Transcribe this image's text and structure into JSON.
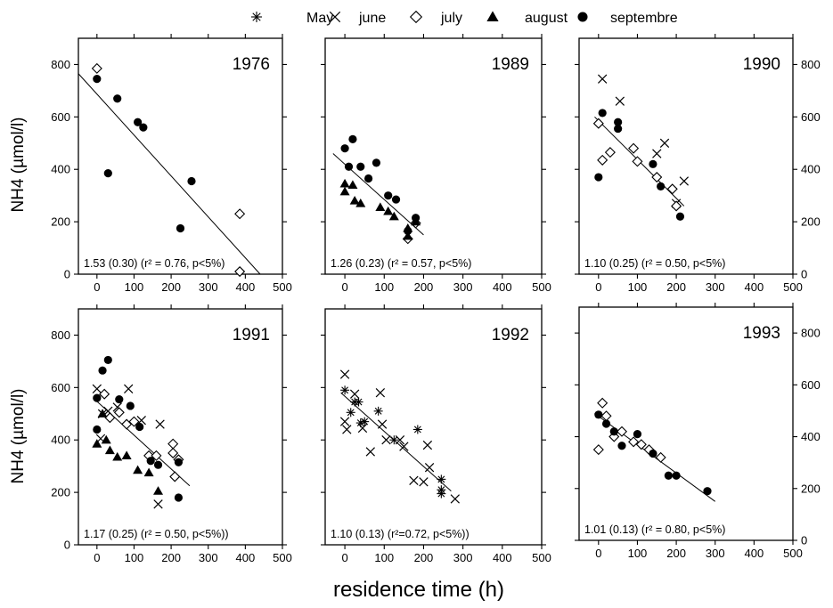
{
  "figure": {
    "ylabel": "NH4 (µmol/l)",
    "xlabel": "residence time  (h)"
  },
  "legend": [
    {
      "label": "May",
      "marker": "asterisk"
    },
    {
      "label": "june",
      "marker": "cross"
    },
    {
      "label": "july",
      "marker": "diamond-open"
    },
    {
      "label": "august",
      "marker": "triangle-filled"
    },
    {
      "label": "septembre",
      "marker": "circle-filled"
    }
  ],
  "x_ticks": [
    "0",
    "100",
    "200",
    "300",
    "400",
    "500"
  ],
  "y_ticks": [
    "0",
    "200",
    "400",
    "600",
    "800"
  ],
  "chart_data": [
    {
      "type": "scatter",
      "title": "1976",
      "stats": "1.53 (0.30)   (r² = 0.76,  p<5%)",
      "xlim": [
        -50,
        500
      ],
      "ylim": [
        0,
        900
      ],
      "fit": {
        "x": [
          -50,
          440
        ],
        "y": [
          765,
          0
        ]
      },
      "series": [
        {
          "name": "july",
          "marker": "diamond-open",
          "points": [
            [
              0,
              785
            ],
            [
              385,
              230
            ],
            [
              385,
              10
            ]
          ]
        },
        {
          "name": "septembre",
          "marker": "circle-filled",
          "points": [
            [
              0,
              745
            ],
            [
              30,
              385
            ],
            [
              55,
              670
            ],
            [
              110,
              580
            ],
            [
              125,
              560
            ],
            [
              255,
              355
            ],
            [
              225,
              175
            ]
          ]
        }
      ]
    },
    {
      "type": "scatter",
      "title": "1989",
      "stats": "1.26 (0.23)  (r² = 0.57, p<5%)",
      "xlim": [
        -50,
        500
      ],
      "ylim": [
        0,
        900
      ],
      "fit": {
        "x": [
          -30,
          200
        ],
        "y": [
          460,
          150
        ]
      },
      "series": [
        {
          "name": "july",
          "marker": "diamond-open",
          "points": [
            [
              180,
              195
            ],
            [
              160,
              135
            ]
          ]
        },
        {
          "name": "august",
          "marker": "triangle-filled",
          "points": [
            [
              0,
              345
            ],
            [
              0,
              315
            ],
            [
              20,
              340
            ],
            [
              25,
              280
            ],
            [
              40,
              270
            ],
            [
              90,
              255
            ],
            [
              110,
              240
            ],
            [
              125,
              220
            ],
            [
              160,
              175
            ],
            [
              160,
              145
            ],
            [
              180,
              200
            ]
          ]
        },
        {
          "name": "septembre",
          "marker": "circle-filled",
          "points": [
            [
              0,
              480
            ],
            [
              10,
              410
            ],
            [
              20,
              515
            ],
            [
              40,
              410
            ],
            [
              60,
              365
            ],
            [
              80,
              425
            ],
            [
              110,
              300
            ],
            [
              130,
              285
            ],
            [
              160,
              165
            ],
            [
              180,
              215
            ]
          ]
        }
      ]
    },
    {
      "type": "scatter",
      "title": "1990",
      "stats": "1.10 (0.25)   (r² = 0.50, p<5%)",
      "xlim": [
        -50,
        500
      ],
      "ylim": [
        0,
        900
      ],
      "fit": {
        "x": [
          -10,
          220
        ],
        "y": [
          600,
          260
        ]
      },
      "series": [
        {
          "name": "june",
          "marker": "cross",
          "points": [
            [
              10,
              745
            ],
            [
              55,
              660
            ],
            [
              150,
              460
            ],
            [
              170,
              500
            ],
            [
              200,
              270
            ],
            [
              220,
              355
            ]
          ]
        },
        {
          "name": "july",
          "marker": "diamond-open",
          "points": [
            [
              0,
              575
            ],
            [
              10,
              435
            ],
            [
              30,
              465
            ],
            [
              90,
              480
            ],
            [
              100,
              430
            ],
            [
              150,
              370
            ],
            [
              190,
              325
            ],
            [
              200,
              260
            ]
          ]
        },
        {
          "name": "septembre",
          "marker": "circle-filled",
          "points": [
            [
              0,
              370
            ],
            [
              10,
              615
            ],
            [
              50,
              580
            ],
            [
              50,
              555
            ],
            [
              140,
              420
            ],
            [
              160,
              335
            ],
            [
              210,
              220
            ]
          ]
        }
      ]
    },
    {
      "type": "scatter",
      "title": "1991",
      "stats": "1.17 (0.25)   (r² = 0.50,  p<5%))",
      "xlim": [
        -50,
        500
      ],
      "ylim": [
        0,
        900
      ],
      "fit": {
        "x": [
          -10,
          250
        ],
        "y": [
          560,
          225
        ]
      },
      "series": [
        {
          "name": "june",
          "marker": "cross",
          "points": [
            [
              0,
              595
            ],
            [
              15,
              500
            ],
            [
              30,
              510
            ],
            [
              55,
              525
            ],
            [
              85,
              595
            ],
            [
              120,
              475
            ],
            [
              170,
              460
            ],
            [
              165,
              155
            ],
            [
              10,
              405
            ]
          ]
        },
        {
          "name": "july",
          "marker": "diamond-open",
          "points": [
            [
              20,
              575
            ],
            [
              35,
              485
            ],
            [
              60,
              505
            ],
            [
              80,
              460
            ],
            [
              100,
              470
            ],
            [
              140,
              340
            ],
            [
              160,
              340
            ],
            [
              205,
              385
            ],
            [
              205,
              350
            ],
            [
              210,
              260
            ],
            [
              220,
              325
            ]
          ]
        },
        {
          "name": "august",
          "marker": "triangle-filled",
          "points": [
            [
              0,
              385
            ],
            [
              15,
              500
            ],
            [
              25,
              400
            ],
            [
              35,
              360
            ],
            [
              55,
              335
            ],
            [
              80,
              340
            ],
            [
              110,
              285
            ],
            [
              140,
              275
            ],
            [
              165,
              205
            ]
          ]
        },
        {
          "name": "septembre",
          "marker": "circle-filled",
          "points": [
            [
              0,
              560
            ],
            [
              0,
              440
            ],
            [
              15,
              665
            ],
            [
              30,
              705
            ],
            [
              60,
              555
            ],
            [
              90,
              530
            ],
            [
              115,
              450
            ],
            [
              145,
              320
            ],
            [
              165,
              305
            ],
            [
              220,
              315
            ],
            [
              220,
              180
            ]
          ]
        }
      ]
    },
    {
      "type": "scatter",
      "title": "1992",
      "stats": "1.10 (0.13)  (r²=0.72, p<5%))",
      "xlim": [
        -50,
        500
      ],
      "ylim": [
        0,
        900
      ],
      "fit": {
        "x": [
          -10,
          270
        ],
        "y": [
          580,
          205
        ]
      },
      "series": [
        {
          "name": "May",
          "marker": "asterisk",
          "points": [
            [
              0,
              590
            ],
            [
              15,
              505
            ],
            [
              25,
              545
            ],
            [
              35,
              545
            ],
            [
              40,
              465
            ],
            [
              50,
              470
            ],
            [
              85,
              510
            ],
            [
              125,
              400
            ],
            [
              185,
              440
            ],
            [
              245,
              250
            ],
            [
              245,
              210
            ],
            [
              245,
              195
            ]
          ]
        },
        {
          "name": "june",
          "marker": "cross",
          "points": [
            [
              0,
              650
            ],
            [
              0,
              470
            ],
            [
              5,
              440
            ],
            [
              25,
              575
            ],
            [
              45,
              445
            ],
            [
              65,
              355
            ],
            [
              90,
              580
            ],
            [
              95,
              460
            ],
            [
              105,
              400
            ],
            [
              140,
              400
            ],
            [
              150,
              375
            ],
            [
              175,
              245
            ],
            [
              200,
              240
            ],
            [
              210,
              380
            ],
            [
              215,
              295
            ],
            [
              280,
              175
            ]
          ]
        }
      ]
    },
    {
      "type": "scatter",
      "title": "1993",
      "stats": "1.01 (0.13)    (r² = 0.80, p<5%)",
      "xlim": [
        -50,
        500
      ],
      "ylim": [
        0,
        900
      ],
      "fit": {
        "x": [
          -10,
          300
        ],
        "y": [
          490,
          150
        ]
      },
      "series": [
        {
          "name": "july",
          "marker": "diamond-open",
          "points": [
            [
              0,
              350
            ],
            [
              10,
              530
            ],
            [
              20,
              480
            ],
            [
              40,
              400
            ],
            [
              60,
              420
            ],
            [
              90,
              380
            ],
            [
              110,
              370
            ],
            [
              130,
              350
            ],
            [
              160,
              320
            ]
          ]
        },
        {
          "name": "septembre",
          "marker": "circle-filled",
          "points": [
            [
              0,
              485
            ],
            [
              20,
              450
            ],
            [
              40,
              420
            ],
            [
              60,
              365
            ],
            [
              100,
              410
            ],
            [
              140,
              335
            ],
            [
              180,
              250
            ],
            [
              200,
              250
            ],
            [
              280,
              190
            ]
          ]
        }
      ]
    }
  ]
}
